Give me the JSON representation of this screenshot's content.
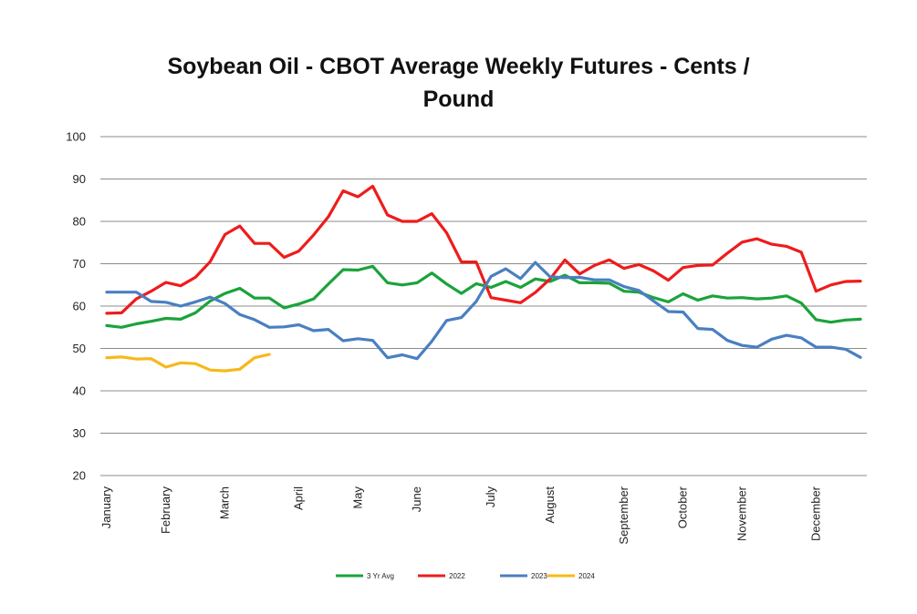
{
  "chart_data": {
    "type": "line",
    "title_lines": [
      "Soybean Oil - CBOT Average Weekly Futures - Cents /",
      "Pound"
    ],
    "xlabel": "",
    "ylabel": "",
    "ylim": [
      20,
      100
    ],
    "yticks": [
      20,
      30,
      40,
      50,
      60,
      70,
      80,
      90,
      100
    ],
    "x_weeks": 52,
    "months": [
      {
        "label": "January",
        "week": 1
      },
      {
        "label": "February",
        "week": 5
      },
      {
        "label": "March",
        "week": 9
      },
      {
        "label": "April",
        "week": 14
      },
      {
        "label": "May",
        "week": 18
      },
      {
        "label": "June",
        "week": 22
      },
      {
        "label": "July",
        "week": 27
      },
      {
        "label": "August",
        "week": 31
      },
      {
        "label": "September",
        "week": 36
      },
      {
        "label": "October",
        "week": 40
      },
      {
        "label": "November",
        "week": 44
      },
      {
        "label": "December",
        "week": 49
      }
    ],
    "grid": true,
    "legend_position": "bottom",
    "series": [
      {
        "name": "3 Yr Avg",
        "color": "#1aa33a",
        "values": [
          55.4,
          55.0,
          55.8,
          56.4,
          57.1,
          56.9,
          58.4,
          61.2,
          63.0,
          64.2,
          61.9,
          61.9,
          59.6,
          60.5,
          61.7,
          65.2,
          68.6,
          68.5,
          69.4,
          65.5,
          65.0,
          65.5,
          67.8,
          65.2,
          63.0,
          65.3,
          64.4,
          65.8,
          64.4,
          66.4,
          65.8,
          67.3,
          65.5,
          65.5,
          65.4,
          63.5,
          63.3,
          62.0,
          61.0,
          62.9,
          61.4,
          62.4,
          61.9,
          62.0,
          61.7,
          61.9,
          62.4,
          60.7,
          56.8,
          56.2,
          56.7,
          56.9
        ]
      },
      {
        "name": "2022",
        "color": "#ee1c1c",
        "values": [
          58.3,
          58.4,
          61.7,
          63.5,
          65.6,
          64.8,
          66.8,
          70.5,
          76.9,
          78.9,
          74.8,
          74.8,
          71.5,
          73.0,
          76.8,
          81.1,
          87.2,
          85.8,
          88.3,
          81.5,
          80.0,
          80.0,
          81.8,
          77.3,
          70.4,
          70.4,
          62.0,
          61.4,
          60.8,
          63.2,
          66.4,
          70.9,
          67.6,
          69.6,
          70.9,
          68.9,
          69.8,
          68.3,
          66.1,
          69.1,
          69.6,
          69.7,
          72.5,
          75.1,
          75.9,
          74.6,
          74.1,
          72.7,
          63.5,
          65.0,
          65.8,
          65.9
        ]
      },
      {
        "name": "2023",
        "color": "#4a7fc1",
        "values": [
          63.3,
          63.3,
          63.3,
          61.1,
          60.9,
          60.0,
          61.0,
          62.1,
          60.6,
          58.0,
          56.8,
          55.0,
          55.1,
          55.6,
          54.2,
          54.5,
          51.8,
          52.3,
          51.9,
          47.8,
          48.5,
          47.6,
          51.7,
          56.6,
          57.3,
          61.1,
          67.0,
          68.8,
          66.5,
          70.3,
          66.9,
          66.7,
          66.8,
          66.2,
          66.2,
          64.6,
          63.7,
          61.2,
          58.7,
          58.6,
          54.7,
          54.5,
          51.9,
          50.7,
          50.3,
          52.2,
          53.1,
          52.5,
          50.3,
          50.3,
          49.8,
          47.9
        ]
      },
      {
        "name": "2024",
        "color": "#f8b81a",
        "values": [
          47.8,
          48.0,
          47.5,
          47.6,
          45.6,
          46.6,
          46.4,
          44.9,
          44.7,
          45.1,
          47.8,
          48.6
        ]
      }
    ]
  }
}
